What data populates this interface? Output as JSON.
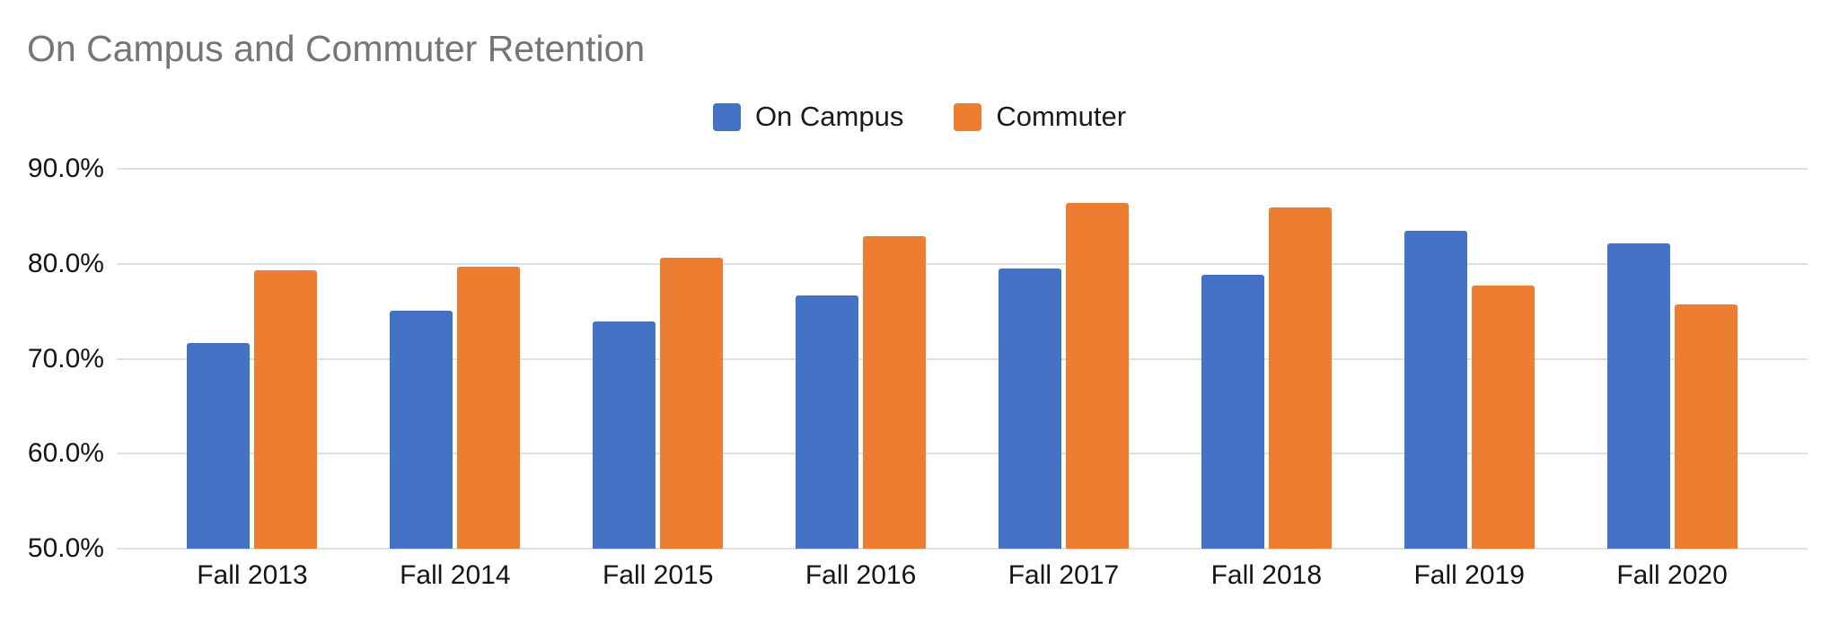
{
  "chart_data": {
    "type": "bar",
    "title": "On Campus and Commuter Retention",
    "categories": [
      "Fall 2013",
      "Fall 2014",
      "Fall 2015",
      "Fall 2016",
      "Fall 2017",
      "Fall 2018",
      "Fall 2019",
      "Fall 2020"
    ],
    "series": [
      {
        "name": "On Campus",
        "color": "#4472C4",
        "values": [
          71.7,
          75.1,
          73.9,
          76.7,
          79.5,
          78.8,
          83.5,
          82.2
        ]
      },
      {
        "name": "Commuter",
        "color": "#ED7D31",
        "values": [
          79.3,
          79.7,
          80.6,
          82.9,
          86.4,
          85.9,
          77.7,
          75.7
        ]
      }
    ],
    "xlabel": "",
    "ylabel": "",
    "ylim": [
      50,
      90
    ],
    "yticks": [
      90,
      80,
      70,
      60,
      50
    ],
    "ytick_labels": [
      "90.0%",
      "80.0%",
      "70.0%",
      "60.0%",
      "50.0%"
    ],
    "grid": true,
    "legend_position": "top-center",
    "colors": {
      "title_text": "#757575",
      "axis_text": "#141414",
      "gridline": "#e0e0e0",
      "background": "#ffffff"
    }
  }
}
